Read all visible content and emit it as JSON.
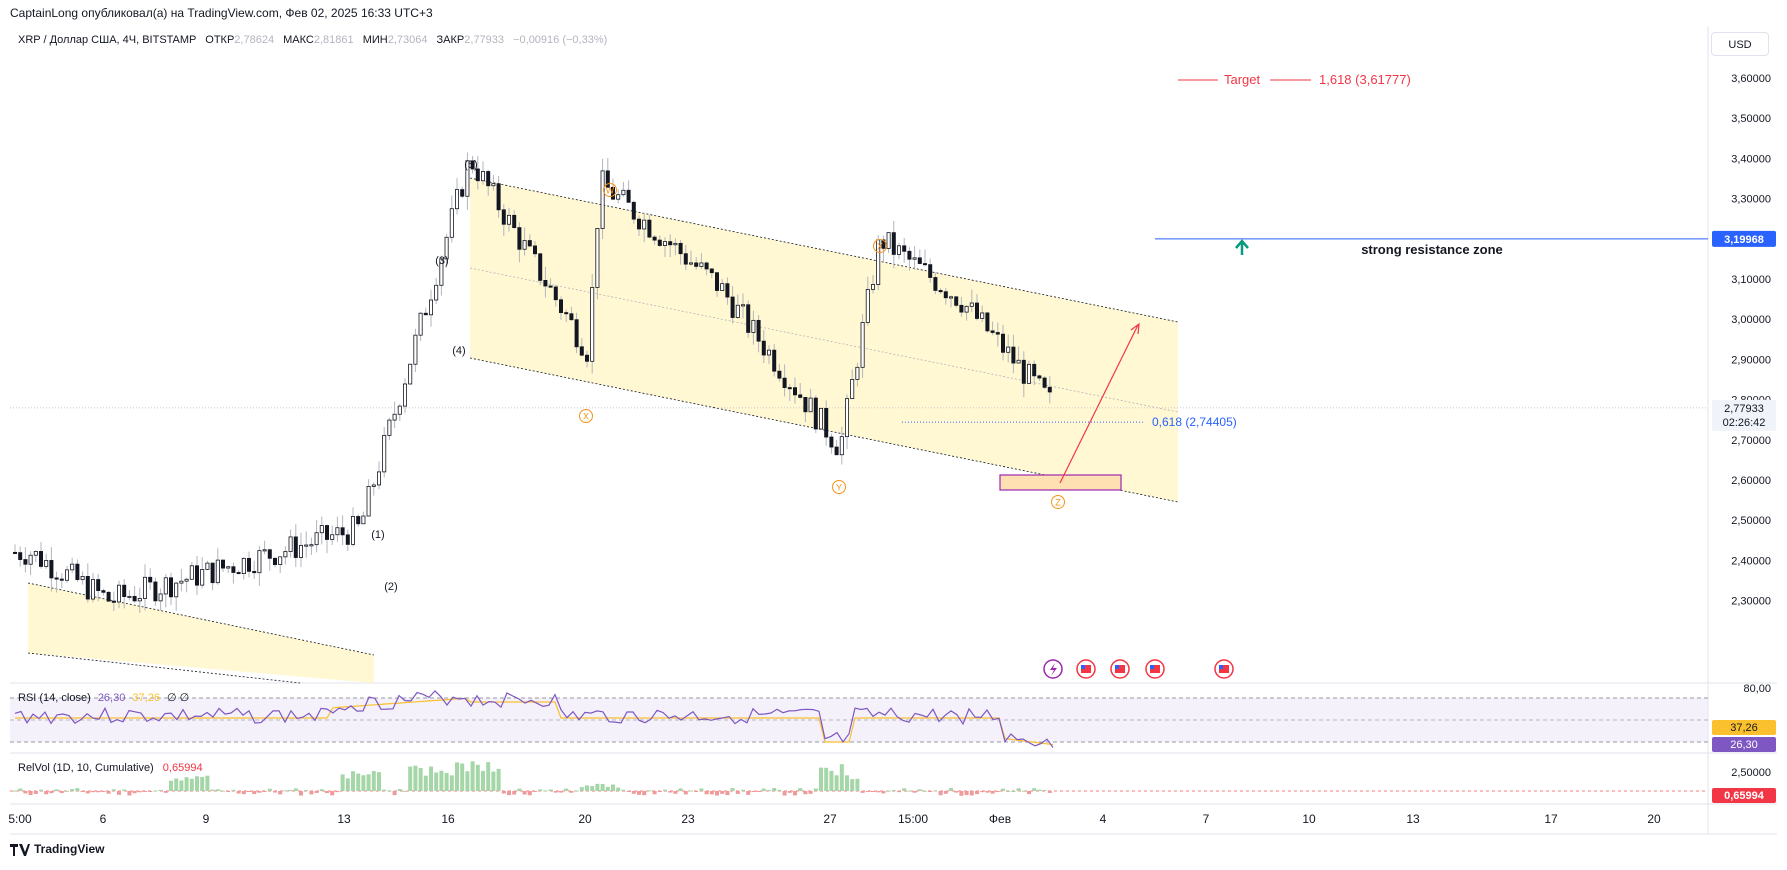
{
  "top_bar": {
    "text": "CaptainLong опубликовал(а) на TradingView.com, Фев 02, 2025 16:33 UTC+3"
  },
  "header": {
    "symbol": "XRP / Доллар США, 4Ч, BITSTAMP",
    "open_label": "ОТКР",
    "open_value": "2,78624",
    "high_label": "МАКС",
    "high_value": "2,81861",
    "low_label": "МИН",
    "low_value": "2,73064",
    "close_label": "ЗАКР",
    "close_value": "2,77933",
    "change": "−0,00916 (−0,33%)"
  },
  "currency_button": "USD",
  "annotations": {
    "target_label": "Target",
    "target_fib": "1,618 (3,61777)",
    "resistance_label": "strong resistance zone",
    "fib_618": "0,618 (2,74405)",
    "waves": [
      "(1)",
      "(2)",
      "(3)",
      "(4)",
      "(5)"
    ],
    "corrective": [
      "W",
      "X",
      "Y",
      "X",
      "Z"
    ]
  },
  "price_scale": {
    "ticks": [
      "3,60000",
      "3,50000",
      "3,40000",
      "3,30000",
      "3,20000",
      "3,10000",
      "3,00000",
      "2,90000",
      "2,80000",
      "2,70000",
      "2,60000",
      "2,50000",
      "2,40000",
      "2,30000"
    ],
    "resistance_badge": "3,19968",
    "last_price_badge": "2,77933",
    "countdown": "02:26:42"
  },
  "rsi": {
    "label": "RSI (14, close)",
    "value1": "26,30",
    "value2": "37,26",
    "zeros": "∅ ∅",
    "scale_top": "80,00",
    "badge_ma": "37,26",
    "badge_rsi": "26,30"
  },
  "relvol": {
    "label": "RelVol (1D, 10, Cumulative)",
    "value": "0,65994",
    "scale_top": "2,50000",
    "badge": "0,65994"
  },
  "time_axis": [
    "5:00",
    "6",
    "9",
    "13",
    "16",
    "20",
    "23",
    "27",
    "15:00",
    "Фев",
    "4",
    "7",
    "10",
    "13",
    "17",
    "20"
  ],
  "footer": "TradingView",
  "colors": {
    "up": "#131722",
    "down": "#131722",
    "channel_fill": "#fff8d0",
    "resistance": "#2962ff",
    "target": "#f23645",
    "wave_orange": "#f7931a",
    "rsi_line": "#7e57c2",
    "rsi_ma": "#fbc02d",
    "relvol": "#a5d6a7",
    "relvol_down": "#ef9a9a"
  },
  "chart_data": {
    "type": "candlestick",
    "instrument": "XRP / Доллар США",
    "timeframe": "4Ч",
    "ylim": [
      2.26,
      3.66
    ],
    "price_path_approx": [
      {
        "t": "6",
        "price": 2.42
      },
      {
        "t": "9",
        "price": 2.3
      },
      {
        "t": "13",
        "price": 2.48
      },
      {
        "t": "16",
        "price": 3.4
      },
      {
        "t": "20",
        "price": 2.92
      },
      {
        "t": "20",
        "price": 3.34
      },
      {
        "t": "23",
        "price": 3.08
      },
      {
        "t": "27",
        "price": 2.68
      },
      {
        "t": "15:00",
        "price": 3.2
      },
      {
        "t": "Фев",
        "price": 3.05
      },
      {
        "t": "Фев",
        "price": 2.78
      }
    ],
    "levels": {
      "target_1_618": 3.61777,
      "resistance": 3.19968,
      "fib_0_618": 2.74405,
      "last_close": 2.77933
    },
    "rsi_last": 26.3,
    "rsi_ma_last": 37.26,
    "relvol_last": 0.65994
  }
}
